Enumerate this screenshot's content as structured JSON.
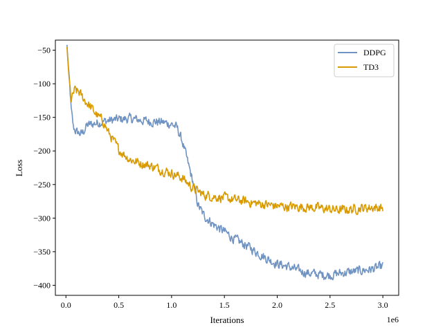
{
  "chart_data": {
    "type": "line",
    "title": "",
    "xlabel": "Iterations",
    "ylabel": "Loss",
    "x_offset_label": "1e6",
    "xlim": [
      -0.1,
      3.15
    ],
    "ylim": [
      -415,
      -35
    ],
    "xticks": [
      0.0,
      0.5,
      1.0,
      1.5,
      2.0,
      2.5,
      3.0
    ],
    "xtick_labels": [
      "0.0",
      "0.5",
      "1.0",
      "1.5",
      "2.0",
      "2.5",
      "3.0"
    ],
    "yticks": [
      -50,
      -100,
      -150,
      -200,
      -250,
      -300,
      -350,
      -400
    ],
    "ytick_labels": [
      "−50",
      "−100",
      "−150",
      "−200",
      "−250",
      "−300",
      "−350",
      "−400"
    ],
    "legend_position": "top-right",
    "grid": false,
    "series": [
      {
        "name": "DDPG",
        "color": "#6f93c3",
        "noise": 6,
        "x": [
          0.01,
          0.03,
          0.05,
          0.07,
          0.1,
          0.15,
          0.2,
          0.3,
          0.4,
          0.5,
          0.6,
          0.7,
          0.8,
          0.9,
          1.0,
          1.05,
          1.1,
          1.15,
          1.2,
          1.25,
          1.3,
          1.4,
          1.5,
          1.6,
          1.7,
          1.8,
          1.9,
          2.0,
          2.1,
          2.2,
          2.3,
          2.4,
          2.5,
          2.6,
          2.7,
          2.8,
          2.9,
          3.0
        ],
        "y": [
          -42,
          -90,
          -140,
          -165,
          -172,
          -175,
          -162,
          -158,
          -155,
          -153,
          -152,
          -154,
          -156,
          -157,
          -160,
          -165,
          -185,
          -215,
          -245,
          -280,
          -295,
          -310,
          -320,
          -332,
          -340,
          -350,
          -360,
          -368,
          -372,
          -378,
          -382,
          -384,
          -385,
          -382,
          -380,
          -378,
          -376,
          -372
        ]
      },
      {
        "name": "TD3",
        "color": "#d99a00",
        "noise": 6,
        "x": [
          0.01,
          0.03,
          0.05,
          0.08,
          0.12,
          0.18,
          0.25,
          0.3,
          0.35,
          0.4,
          0.5,
          0.6,
          0.7,
          0.8,
          0.9,
          1.0,
          1.1,
          1.2,
          1.3,
          1.4,
          1.5,
          1.6,
          1.7,
          1.8,
          1.9,
          2.0,
          2.1,
          2.2,
          2.3,
          2.4,
          2.5,
          2.6,
          2.7,
          2.8,
          2.9,
          3.0
        ],
        "y": [
          -45,
          -95,
          -125,
          -110,
          -112,
          -125,
          -138,
          -148,
          -155,
          -172,
          -198,
          -212,
          -218,
          -222,
          -228,
          -233,
          -240,
          -255,
          -265,
          -268,
          -270,
          -273,
          -275,
          -278,
          -280,
          -282,
          -283,
          -283,
          -284,
          -285,
          -287,
          -288,
          -287,
          -285,
          -284,
          -285
        ]
      }
    ]
  }
}
